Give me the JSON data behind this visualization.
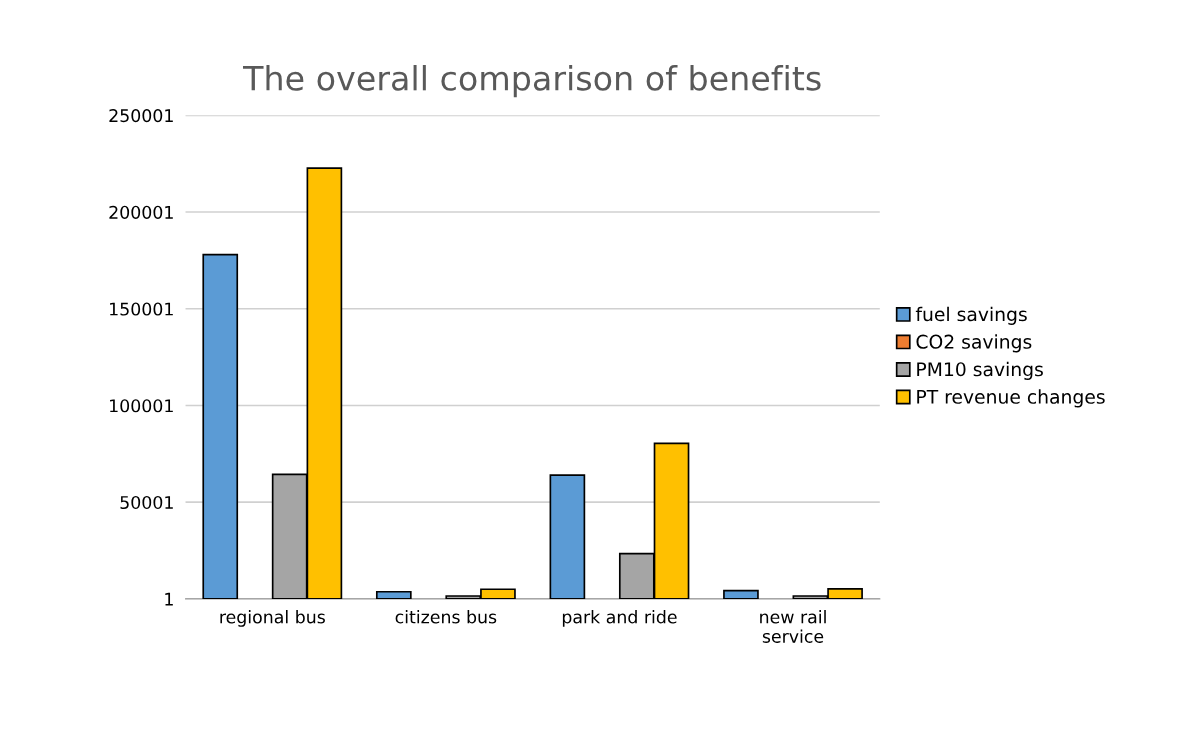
{
  "chart_data": {
    "type": "bar",
    "title": "The overall comparison of benefits",
    "categories": [
      "regional bus",
      "citizens bus",
      "park and ride",
      "new rail\nservice"
    ],
    "series": [
      {
        "name": "fuel savings",
        "color": "#5b9bd5",
        "values": [
          178000,
          3700,
          64000,
          4300
        ]
      },
      {
        "name": "CO2 savings",
        "color": "#ed7d31",
        "values": [
          null,
          null,
          null,
          null
        ]
      },
      {
        "name": "PM10 savings",
        "color": "#a5a5a5",
        "values": [
          64400,
          1500,
          23400,
          1500
        ]
      },
      {
        "name": "PT revenue changes",
        "color": "#ffc000",
        "values": [
          222700,
          5000,
          80400,
          5200
        ]
      }
    ],
    "ylim": [
      1,
      250001
    ],
    "yticks": [
      1,
      50001,
      100001,
      150001,
      200001,
      250001
    ],
    "grid": "y",
    "legend": "right"
  }
}
